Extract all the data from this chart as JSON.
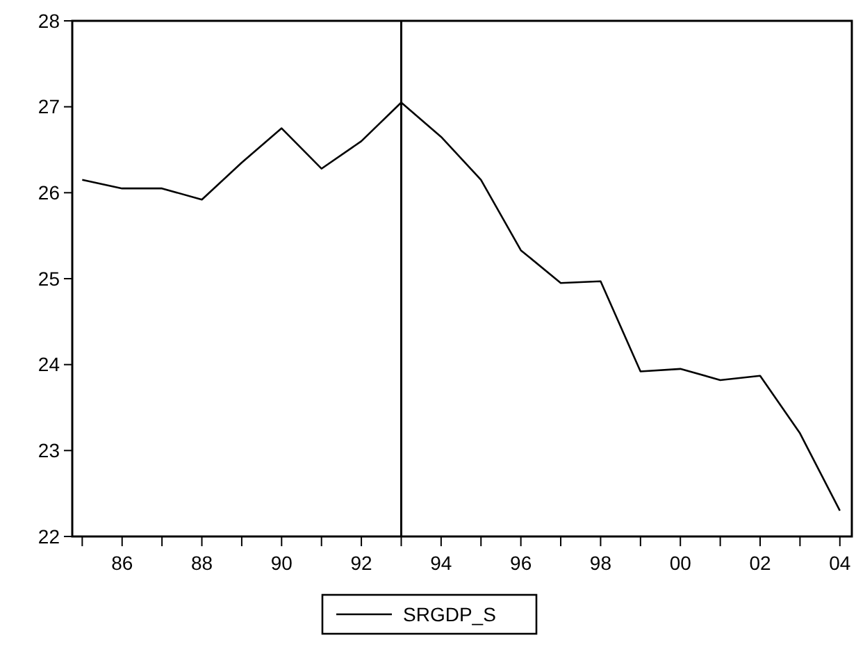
{
  "chart_data": {
    "type": "line",
    "x": [
      1985,
      1986,
      1987,
      1988,
      1989,
      1990,
      1991,
      1992,
      1993,
      1994,
      1995,
      1996,
      1997,
      1998,
      1999,
      2000,
      2001,
      2002,
      2003,
      2004
    ],
    "series": [
      {
        "name": "SRGDP_S",
        "color": "#000000",
        "values": [
          26.15,
          26.05,
          26.05,
          25.92,
          26.35,
          26.75,
          26.28,
          26.6,
          27.05,
          26.65,
          26.15,
          25.33,
          24.95,
          24.97,
          23.92,
          23.95,
          23.82,
          23.87,
          23.2,
          22.3
        ]
      }
    ],
    "xlim": [
      1984.75,
      2004.3
    ],
    "xticks": [
      {
        "value": 1985,
        "label": null
      },
      {
        "value": 1986,
        "label": "86"
      },
      {
        "value": 1987,
        "label": null
      },
      {
        "value": 1988,
        "label": "88"
      },
      {
        "value": 1989,
        "label": null
      },
      {
        "value": 1990,
        "label": "90"
      },
      {
        "value": 1991,
        "label": null
      },
      {
        "value": 1992,
        "label": "92"
      },
      {
        "value": 1993,
        "label": null
      },
      {
        "value": 1994,
        "label": "94"
      },
      {
        "value": 1995,
        "label": null
      },
      {
        "value": 1996,
        "label": "96"
      },
      {
        "value": 1997,
        "label": null
      },
      {
        "value": 1998,
        "label": "98"
      },
      {
        "value": 1999,
        "label": null
      },
      {
        "value": 2000,
        "label": "00"
      },
      {
        "value": 2001,
        "label": null
      },
      {
        "value": 2002,
        "label": "02"
      },
      {
        "value": 2003,
        "label": null
      },
      {
        "value": 2004,
        "label": "04"
      }
    ],
    "ylim": [
      22,
      28
    ],
    "yticks": [
      22,
      23,
      24,
      25,
      26,
      27,
      28
    ],
    "ref_lines": [
      {
        "axis": "x",
        "value": 1993,
        "color": "#000000"
      }
    ],
    "legend": "bottom",
    "grid": false,
    "marker": "none",
    "line_style": "solid"
  }
}
